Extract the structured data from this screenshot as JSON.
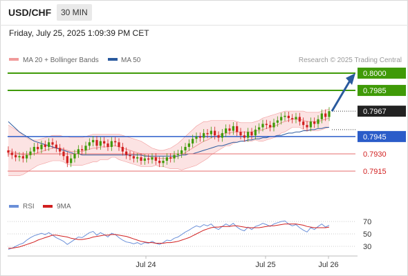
{
  "header": {
    "symbol": "USD/CHF",
    "timeframe": "30 MIN",
    "datetime": "Friday, July 25, 2025 1:09:39 PM CET"
  },
  "legend": {
    "bollinger": "MA 20 + Bollinger Bands",
    "ma50": "MA 50",
    "rsi": "RSI",
    "rsi_ma": "9MA"
  },
  "watermark": "Research © 2025 Trading Central",
  "colors": {
    "resistance_line": "#3f9a07",
    "resistance_label_bg": "#3f9a07",
    "support_line": "#2a5cc9",
    "support_label_bg": "#2a5cc9",
    "target_line": "#e46b6b",
    "target_label_text": "#d11f1f",
    "current_label_bg": "#222222",
    "candle_up": "#3f9a07",
    "candle_down": "#d11f1f",
    "bollinger_fill": "#fbdcdc",
    "bollinger_line": "#f19a9a",
    "ma50": "#2a5a9e",
    "rsi_line": "#6a8fd8",
    "rsi_ma_line": "#d11f1f",
    "arrow": "#2a5a9e"
  },
  "chart_data": {
    "type": "candlestick",
    "x_labels": [
      "Jul 24",
      "Jul 25",
      "Jul 26"
    ],
    "price_range": [
      0.789,
      0.802
    ],
    "levels": [
      {
        "value": 0.8,
        "label": "0.8000",
        "kind": "resistance"
      },
      {
        "value": 0.7985,
        "label": "0.7985",
        "kind": "resistance"
      },
      {
        "value": 0.7967,
        "label": "0.7967",
        "kind": "current"
      },
      {
        "value": 0.7945,
        "label": "0.7945",
        "kind": "support"
      },
      {
        "value": 0.793,
        "label": "0.7930",
        "kind": "target"
      },
      {
        "value": 0.7915,
        "label": "0.7915",
        "kind": "target"
      }
    ],
    "closes": [
      0.7931,
      0.7929,
      0.7927,
      0.7928,
      0.7926,
      0.7929,
      0.7932,
      0.7936,
      0.7934,
      0.7938,
      0.7936,
      0.794,
      0.7938,
      0.7935,
      0.7932,
      0.7928,
      0.7922,
      0.7926,
      0.793,
      0.7934,
      0.7933,
      0.7937,
      0.794,
      0.7942,
      0.7937,
      0.7941,
      0.7939,
      0.7936,
      0.7941,
      0.794,
      0.7936,
      0.7932,
      0.7929,
      0.7928,
      0.7926,
      0.7927,
      0.7924,
      0.7926,
      0.7925,
      0.7927,
      0.7924,
      0.7922,
      0.7924,
      0.7927,
      0.7926,
      0.7929,
      0.793,
      0.7933,
      0.7936,
      0.7939,
      0.7943,
      0.7945,
      0.7944,
      0.7948,
      0.7947,
      0.795,
      0.7946,
      0.7944,
      0.7948,
      0.7952,
      0.795,
      0.7954,
      0.7949,
      0.7946,
      0.7944,
      0.7949,
      0.7946,
      0.7951,
      0.7953,
      0.7956,
      0.7955,
      0.7953,
      0.7957,
      0.7959,
      0.7962,
      0.7963,
      0.7961,
      0.796,
      0.7962,
      0.7958,
      0.7955,
      0.7953,
      0.7958,
      0.7956,
      0.796,
      0.7965,
      0.7962,
      0.7967
    ],
    "opens": [
      0.7933,
      0.7931,
      0.7929,
      0.7927,
      0.7928,
      0.7926,
      0.7929,
      0.7932,
      0.7936,
      0.7934,
      0.7938,
      0.7936,
      0.794,
      0.7938,
      0.7935,
      0.7932,
      0.7928,
      0.7922,
      0.7926,
      0.793,
      0.7934,
      0.7933,
      0.7937,
      0.794,
      0.7942,
      0.7937,
      0.7941,
      0.7939,
      0.7936,
      0.7941,
      0.794,
      0.7936,
      0.7932,
      0.7929,
      0.7928,
      0.7926,
      0.7927,
      0.7924,
      0.7926,
      0.7925,
      0.7927,
      0.7924,
      0.7922,
      0.7924,
      0.7927,
      0.7926,
      0.7929,
      0.793,
      0.7933,
      0.7936,
      0.7939,
      0.7943,
      0.7945,
      0.7944,
      0.7948,
      0.7947,
      0.795,
      0.7946,
      0.7944,
      0.7948,
      0.7952,
      0.795,
      0.7954,
      0.7949,
      0.7946,
      0.7944,
      0.7949,
      0.7946,
      0.7951,
      0.7953,
      0.7956,
      0.7955,
      0.7953,
      0.7957,
      0.7959,
      0.7962,
      0.7963,
      0.7961,
      0.796,
      0.7962,
      0.7958,
      0.7955,
      0.7953,
      0.7958,
      0.7956,
      0.796,
      0.7965,
      0.7962
    ],
    "ma20": [
      0.7933,
      0.7932,
      0.7931,
      0.793,
      0.7929,
      0.7929,
      0.7929,
      0.793,
      0.7931,
      0.7932,
      0.7933,
      0.7934,
      0.7935,
      0.7935,
      0.7935,
      0.7934,
      0.7933,
      0.7932,
      0.7932,
      0.7932,
      0.7932,
      0.7933,
      0.7934,
      0.7935,
      0.7935,
      0.7936,
      0.7936,
      0.7936,
      0.7937,
      0.7937,
      0.7936,
      0.7935,
      0.7934,
      0.7933,
      0.7932,
      0.7931,
      0.793,
      0.7929,
      0.7928,
      0.7927,
      0.7927,
      0.7926,
      0.7926,
      0.7926,
      0.7926,
      0.7927,
      0.7928,
      0.7929,
      0.7931,
      0.7933,
      0.7935,
      0.7937,
      0.7939,
      0.7941,
      0.7942,
      0.7944,
      0.7945,
      0.7946,
      0.7947,
      0.7948,
      0.7948,
      0.7949,
      0.7949,
      0.7949,
      0.7949,
      0.7949,
      0.7949,
      0.795,
      0.795,
      0.7951,
      0.7952,
      0.7953,
      0.7954,
      0.7955,
      0.7957,
      0.7958,
      0.7959,
      0.796,
      0.796,
      0.796,
      0.7959,
      0.7958,
      0.7958,
      0.7958,
      0.7958,
      0.7959,
      0.796,
      0.7961
    ],
    "bb_upper": [
      0.7955,
      0.7953,
      0.7951,
      0.7949,
      0.7946,
      0.7944,
      0.7942,
      0.7942,
      0.7942,
      0.7943,
      0.7944,
      0.7945,
      0.7946,
      0.7946,
      0.7946,
      0.7945,
      0.7945,
      0.7944,
      0.7944,
      0.7944,
      0.7944,
      0.7945,
      0.7946,
      0.7947,
      0.7947,
      0.7947,
      0.7947,
      0.7947,
      0.7947,
      0.7947,
      0.7947,
      0.7946,
      0.7945,
      0.7944,
      0.7943,
      0.7942,
      0.7941,
      0.7939,
      0.7937,
      0.7935,
      0.7934,
      0.7933,
      0.7933,
      0.7934,
      0.7935,
      0.7937,
      0.7939,
      0.7942,
      0.7945,
      0.7948,
      0.7951,
      0.7954,
      0.7956,
      0.7958,
      0.7958,
      0.7959,
      0.7959,
      0.7959,
      0.7959,
      0.7959,
      0.7959,
      0.7959,
      0.7958,
      0.7957,
      0.7957,
      0.7957,
      0.7957,
      0.7958,
      0.7959,
      0.7961,
      0.7962,
      0.7963,
      0.7964,
      0.7965,
      0.7966,
      0.7967,
      0.7967,
      0.7967,
      0.7967,
      0.7967,
      0.7967,
      0.7966,
      0.7966,
      0.7966,
      0.7966,
      0.7967,
      0.7968,
      0.7969
    ],
    "bb_lower": [
      0.7911,
      0.7911,
      0.7911,
      0.7911,
      0.7912,
      0.7914,
      0.7916,
      0.7918,
      0.792,
      0.7921,
      0.7922,
      0.7923,
      0.7924,
      0.7924,
      0.7924,
      0.7923,
      0.7921,
      0.792,
      0.792,
      0.792,
      0.792,
      0.7921,
      0.7922,
      0.7923,
      0.7923,
      0.7925,
      0.7925,
      0.7925,
      0.7927,
      0.7927,
      0.7925,
      0.7924,
      0.7923,
      0.7922,
      0.7921,
      0.792,
      0.7919,
      0.7919,
      0.7919,
      0.7919,
      0.792,
      0.7919,
      0.7919,
      0.7918,
      0.7917,
      0.7917,
      0.7917,
      0.7916,
      0.7917,
      0.7918,
      0.7919,
      0.792,
      0.7922,
      0.7924,
      0.7926,
      0.7929,
      0.7931,
      0.7933,
      0.7935,
      0.7937,
      0.7937,
      0.7939,
      0.794,
      0.7941,
      0.7941,
      0.7941,
      0.7941,
      0.7942,
      0.7941,
      0.7941,
      0.7942,
      0.7943,
      0.7944,
      0.7945,
      0.7948,
      0.7949,
      0.7951,
      0.7953,
      0.7953,
      0.7953,
      0.7951,
      0.795,
      0.795,
      0.795,
      0.795,
      0.7951,
      0.7952,
      0.7953
    ],
    "ma50": [
      0.7958,
      0.7955,
      0.7952,
      0.7949,
      0.7947,
      0.7945,
      0.7943,
      0.7941,
      0.794,
      0.7939,
      0.7938,
      0.7937,
      0.7936,
      0.7935,
      0.7934,
      0.7933,
      0.7932,
      0.7931,
      0.793,
      0.793,
      0.7929,
      0.7929,
      0.7929,
      0.7929,
      0.7929,
      0.7929,
      0.7929,
      0.7929,
      0.7929,
      0.7929,
      0.7929,
      0.7929,
      0.7929,
      0.7929,
      0.7929,
      0.7929,
      0.7929,
      0.7928,
      0.7928,
      0.7928,
      0.7928,
      0.7928,
      0.7928,
      0.7928,
      0.7928,
      0.7928,
      0.7928,
      0.7929,
      0.7929,
      0.793,
      0.793,
      0.7931,
      0.7932,
      0.7933,
      0.7934,
      0.7935,
      0.7936,
      0.7937,
      0.7937,
      0.7938,
      0.7939,
      0.794,
      0.794,
      0.7941,
      0.7941,
      0.7942,
      0.7942,
      0.7943,
      0.7943,
      0.7944,
      0.7944,
      0.7945,
      0.7945,
      0.7946,
      0.7946,
      0.7947,
      0.7948,
      0.7948,
      0.7949,
      0.7949,
      0.795,
      0.795,
      0.7951,
      0.7951,
      0.7952,
      0.7952,
      0.7953,
      0.7953
    ],
    "rsi": {
      "range": [
        20,
        80
      ],
      "ticks": [
        70,
        50,
        30
      ],
      "values": [
        25,
        27,
        30,
        33,
        35,
        40,
        44,
        47,
        49,
        51,
        49,
        52,
        48,
        44,
        41,
        38,
        33,
        37,
        41,
        45,
        44,
        48,
        52,
        54,
        48,
        52,
        49,
        45,
        51,
        49,
        44,
        40,
        37,
        36,
        34,
        36,
        33,
        36,
        35,
        38,
        35,
        33,
        36,
        40,
        39,
        43,
        45,
        49,
        53,
        56,
        60,
        63,
        61,
        65,
        63,
        66,
        60,
        57,
        62,
        66,
        63,
        67,
        61,
        57,
        55,
        61,
        57,
        62,
        64,
        67,
        65,
        62,
        66,
        68,
        70,
        71,
        66,
        63,
        65,
        60,
        56,
        53,
        60,
        57,
        62,
        66,
        61,
        64
      ],
      "ma9": [
        27,
        27,
        28,
        29,
        31,
        33,
        35,
        37,
        40,
        42,
        44,
        46,
        48,
        48,
        47,
        46,
        45,
        43,
        42,
        41,
        41,
        42,
        43,
        45,
        46,
        47,
        48,
        48,
        49,
        49,
        48,
        47,
        46,
        44,
        42,
        40,
        38,
        37,
        36,
        36,
        35,
        35,
        35,
        36,
        36,
        37,
        38,
        40,
        42,
        44,
        47,
        50,
        53,
        56,
        58,
        60,
        61,
        61,
        62,
        62,
        62,
        63,
        63,
        62,
        61,
        60,
        60,
        60,
        60,
        61,
        62,
        63,
        63,
        64,
        65,
        66,
        66,
        66,
        66,
        65,
        64,
        62,
        61,
        60,
        60,
        60,
        60,
        61
      ]
    }
  }
}
